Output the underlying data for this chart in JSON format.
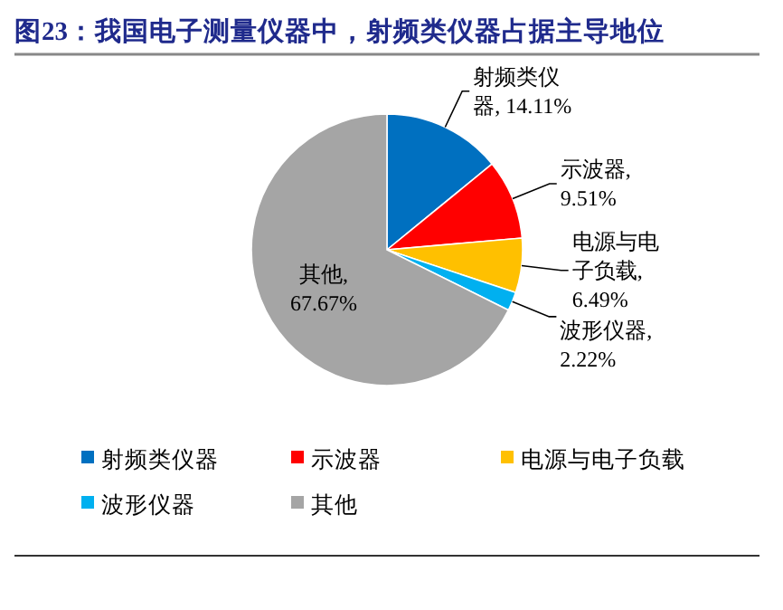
{
  "chart_data": {
    "type": "pie",
    "title": "图23：我国电子测量仪器中，射频类仪器占据主导地位",
    "categories": [
      "射频类仪器",
      "示波器",
      "电源与电子负载",
      "波形仪器",
      "其他"
    ],
    "values": [
      14.11,
      9.51,
      6.49,
      2.22,
      67.67
    ],
    "colors": [
      "#0070c0",
      "#ff0000",
      "#ffc000",
      "#00b0f0",
      "#a5a5a5"
    ],
    "value_labels": [
      "射频类仪器, 14.11%",
      "示波器, 9.51%",
      "电源与电子负载, 6.49%",
      "波形仪器, 2.22%",
      "其他, 67.67%"
    ],
    "legend": "bottom"
  }
}
